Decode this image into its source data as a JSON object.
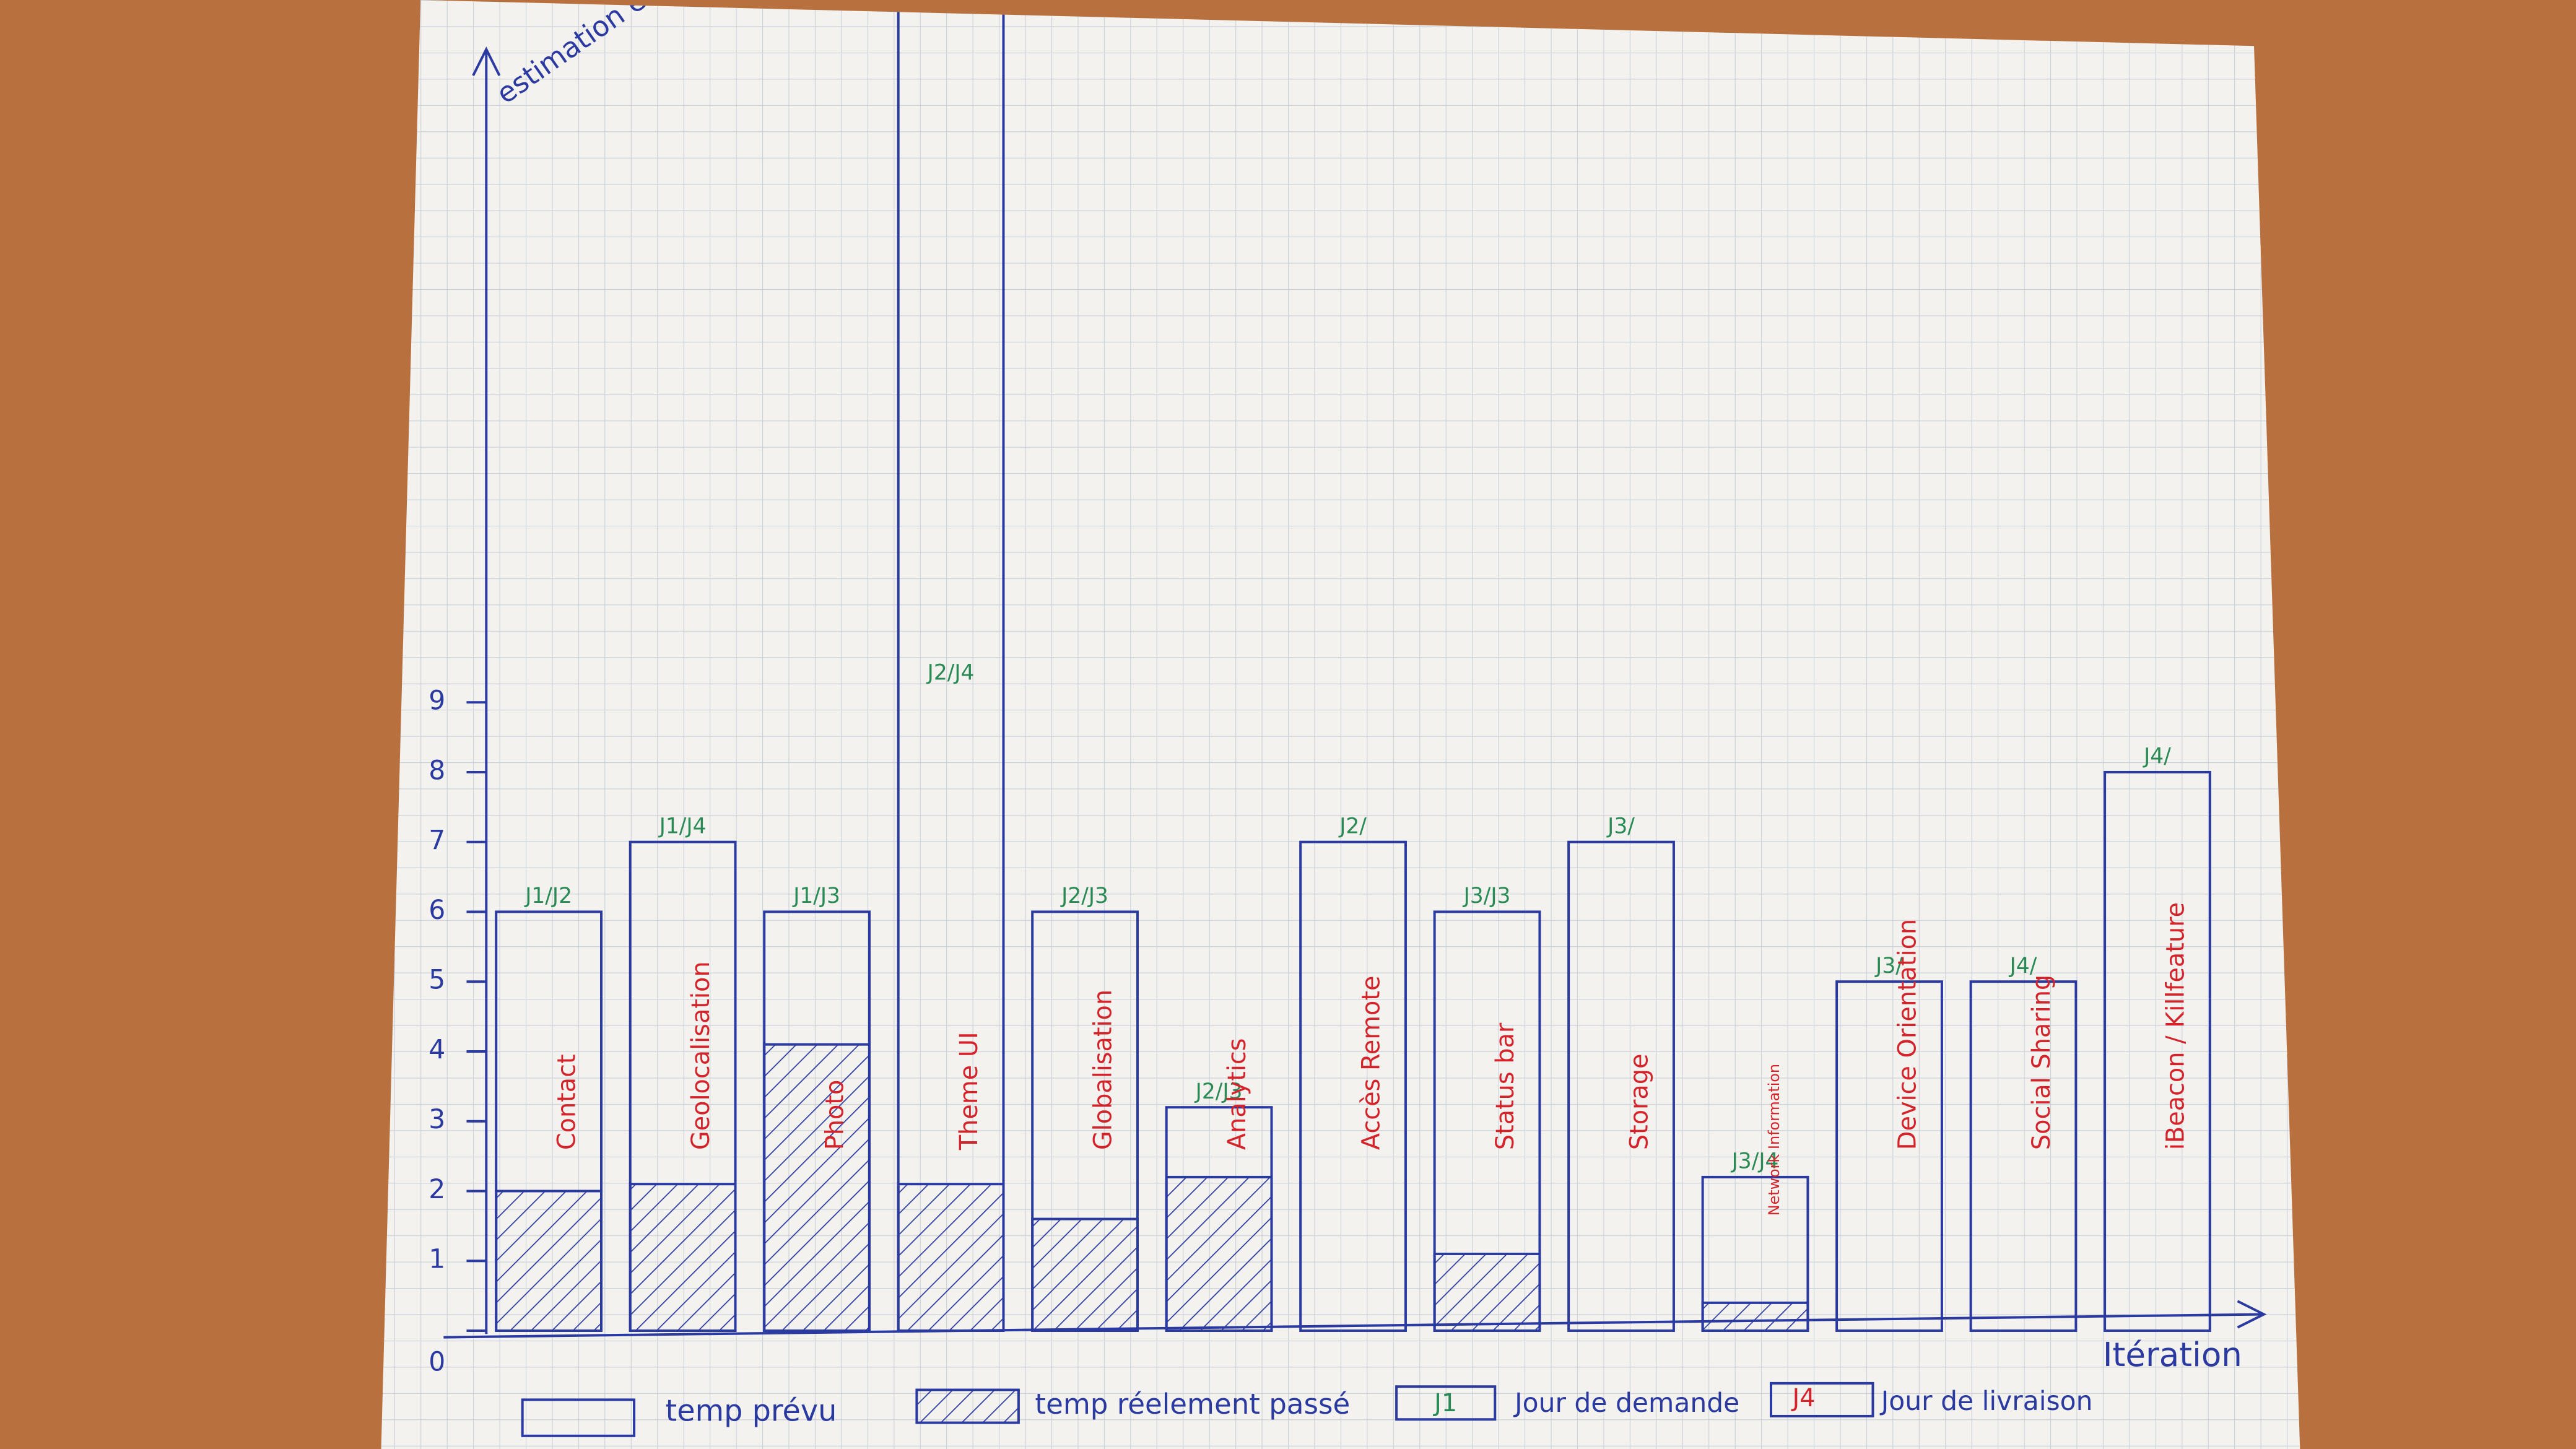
{
  "chart_data": {
    "type": "bar",
    "y_label": "estimation en heure",
    "x_label": "Itération",
    "categories": [
      "Contact",
      "Geolocalisation",
      "Photo",
      "Theme UI",
      "Globalisation",
      "Analytics",
      "Accès Remote",
      "Status bar",
      "Storage",
      "Network Information",
      "Device Orientation",
      "Social Sharing",
      "iBeacon / Killfeature"
    ],
    "series": [
      {
        "name": "temp prévu",
        "color": "#2b3aa0",
        "values": [
          6,
          7,
          6,
          19,
          6,
          3.2,
          7,
          6,
          7,
          2.2,
          5,
          5,
          8
        ]
      },
      {
        "name": "temp réelement passé",
        "color": "#2b3aa0",
        "values": [
          2,
          2.1,
          4.1,
          2.1,
          1.6,
          2.2,
          null,
          1.1,
          null,
          0.4,
          null,
          null,
          null
        ]
      }
    ],
    "day_labels": [
      "J1/J2",
      "J1/J4",
      "J1/J3",
      "J2/J4",
      "J2/J3",
      "J2/J3",
      "J2/",
      "J3/J3",
      "J3/",
      "J3/J4",
      "J3/",
      "J4/",
      "J4/"
    ],
    "day_legend": [
      {
        "tag": "J1",
        "text": "Jour de demande"
      },
      {
        "tag": "J4",
        "text": "Jour de livraison"
      }
    ],
    "ylim": [
      0,
      19
    ],
    "yticks": [
      0,
      1,
      2,
      3,
      4,
      5,
      6,
      7,
      8,
      9
    ],
    "grid": true
  }
}
